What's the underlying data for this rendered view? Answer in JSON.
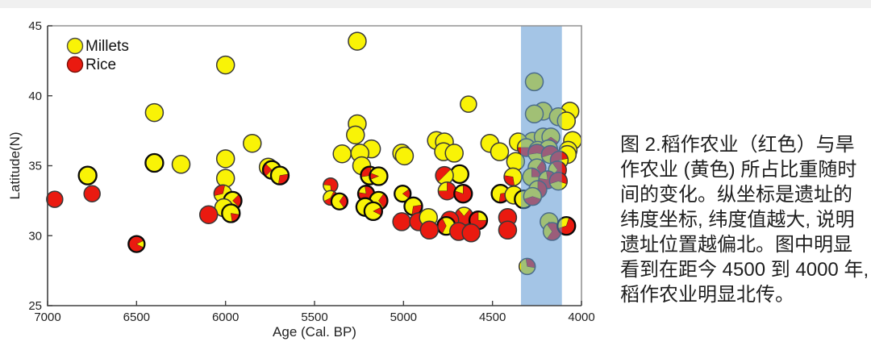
{
  "figure": {
    "caption_lines": [
      "图 2.稻作农业（红色）与旱",
      "作农业 (黄色) 所占比重随时",
      "间的变化。纵坐标是遗址的",
      "纬度坐标, 纬度值越大, 说明",
      "遗址位置越偏北。图中明显",
      "看到在距今 4500 到 4000 年,",
      "稻作农业明显北传。"
    ]
  },
  "chart_data": {
    "type": "scatter",
    "subtype": "pie-markers",
    "title": "",
    "xlabel": "Age (Cal. BP)",
    "ylabel": "Latitude(N)",
    "xlim": [
      7000,
      4000
    ],
    "ylim": [
      25,
      45
    ],
    "x_ticks": [
      7000,
      6500,
      6000,
      5500,
      5000,
      4500,
      4000
    ],
    "y_ticks": [
      25,
      30,
      35,
      40,
      45
    ],
    "x_axis_reversed": true,
    "grid": false,
    "legend": {
      "position": "top-left-inside",
      "items": [
        {
          "label": "Millets",
          "color": "#f9f306"
        },
        {
          "label": "Rice",
          "color": "#ea1a10"
        }
      ]
    },
    "highlight_band": {
      "x_from": 4340,
      "x_to": 4110,
      "color": "#5a96d2",
      "opacity": 0.55
    },
    "colors": {
      "millet": "#f9f306",
      "rice": "#ea1a10",
      "marker_edge": "#383838",
      "marker_edge_thick": "#0a0a0a",
      "axis_dark": "#404040",
      "axis_light": "#949494"
    },
    "points_columns": [
      "age_cal_bp",
      "latitude_n",
      "rice_fraction",
      "wedge_rotation_deg",
      "radius_px",
      "thick_edge"
    ],
    "points": [
      [
        5260,
        43.9,
        0,
        0,
        11,
        0
      ],
      [
        6000,
        42.2,
        0,
        0,
        11,
        0
      ],
      [
        4265,
        41.0,
        0,
        0,
        11,
        0
      ],
      [
        4635,
        39.4,
        0,
        0,
        10,
        0
      ],
      [
        4065,
        38.9,
        0,
        0,
        11,
        0
      ],
      [
        6400,
        38.8,
        0,
        0,
        11,
        0
      ],
      [
        4215,
        38.9,
        0,
        0,
        11,
        0
      ],
      [
        4265,
        38.7,
        0,
        0,
        11,
        0
      ],
      [
        4130,
        38.5,
        0,
        0,
        11,
        0
      ],
      [
        4085,
        38.2,
        0,
        0,
        11,
        0
      ],
      [
        5260,
        38.0,
        0,
        0,
        11,
        0
      ],
      [
        5270,
        37.2,
        0,
        0,
        11,
        0
      ],
      [
        5850,
        36.6,
        0,
        0,
        11,
        0
      ],
      [
        4815,
        36.8,
        0,
        0,
        11,
        0
      ],
      [
        4770,
        36.7,
        0,
        0,
        11,
        0
      ],
      [
        4050,
        36.8,
        0,
        0,
        11,
        0
      ],
      [
        4275,
        36.75,
        0.15,
        45,
        11,
        0
      ],
      [
        4215,
        37.05,
        0.25,
        45,
        11,
        0
      ],
      [
        4172,
        37.05,
        0.3,
        90,
        11,
        0
      ],
      [
        4515,
        36.6,
        0,
        0,
        11,
        0
      ],
      [
        4355,
        36.7,
        0,
        0,
        11,
        0
      ],
      [
        4310,
        36.3,
        0.5,
        90,
        11,
        0
      ],
      [
        4245,
        36.1,
        0.5,
        90,
        11,
        0
      ],
      [
        4185,
        36.2,
        0.4,
        90,
        11,
        0
      ],
      [
        5180,
        36.2,
        0,
        0,
        11,
        0
      ],
      [
        4460,
        36.0,
        0,
        0,
        11,
        0
      ],
      [
        4775,
        36.0,
        0,
        0,
        11,
        0
      ],
      [
        4715,
        35.9,
        0,
        0,
        11,
        0
      ],
      [
        4075,
        36.1,
        0,
        0,
        11,
        0
      ],
      [
        4080,
        35.8,
        0,
        0,
        11,
        0
      ],
      [
        5010,
        35.9,
        0,
        0,
        11,
        0
      ],
      [
        4995,
        35.7,
        0,
        0,
        11,
        0
      ],
      [
        5345,
        35.85,
        0,
        0,
        11,
        0
      ],
      [
        5245,
        35.9,
        0,
        0,
        11,
        0
      ],
      [
        6000,
        35.5,
        0,
        0,
        11,
        0
      ],
      [
        4250,
        35.9,
        0.55,
        270,
        11,
        0
      ],
      [
        4175,
        35.8,
        0.6,
        270,
        11,
        0
      ],
      [
        4125,
        35.4,
        0.55,
        250,
        11,
        0
      ],
      [
        4370,
        35.3,
        0,
        0,
        11,
        0
      ],
      [
        6400,
        35.2,
        0,
        0,
        11,
        1
      ],
      [
        6250,
        35.1,
        0,
        0,
        11,
        0
      ],
      [
        5760,
        34.9,
        0,
        0,
        11,
        0
      ],
      [
        4250,
        34.85,
        0.3,
        0,
        11,
        0
      ],
      [
        5740,
        34.7,
        0.25,
        180,
        11,
        1
      ],
      [
        4685,
        34.4,
        0,
        0,
        11,
        1
      ],
      [
        4135,
        34.7,
        0.7,
        0,
        11,
        0
      ],
      [
        6775,
        34.3,
        0,
        0,
        11,
        1
      ],
      [
        5695,
        34.3,
        0.3,
        45,
        11,
        1
      ],
      [
        5235,
        35.0,
        0,
        0,
        11,
        0
      ],
      [
        5190,
        34.3,
        0.3,
        225,
        11,
        1
      ],
      [
        5140,
        34.25,
        0.12,
        180,
        11,
        1
      ],
      [
        4770,
        34.3,
        0.5,
        225,
        11,
        0
      ],
      [
        4280,
        34.2,
        0.25,
        315,
        11,
        0
      ],
      [
        4385,
        34.2,
        0.3,
        135,
        11,
        0
      ],
      [
        4190,
        34.0,
        0.8,
        45,
        11,
        0
      ],
      [
        4130,
        33.9,
        0.6,
        270,
        11,
        0
      ],
      [
        6000,
        34.1,
        0,
        0,
        11,
        0
      ],
      [
        5410,
        33.6,
        0.72,
        315,
        9,
        0
      ],
      [
        4245,
        33.3,
        0.5,
        0,
        11,
        0
      ],
      [
        6015,
        33.0,
        0.32,
        225,
        11,
        0
      ],
      [
        6750,
        33.0,
        1,
        0,
        10,
        0
      ],
      [
        6960,
        32.6,
        1,
        0,
        10,
        0
      ],
      [
        5210,
        33.0,
        0.8,
        45,
        10,
        1
      ],
      [
        5005,
        33.0,
        0.2,
        0,
        10,
        1
      ],
      [
        4755,
        33.2,
        0.75,
        45,
        11,
        0
      ],
      [
        4665,
        33.0,
        0.8,
        55,
        11,
        1
      ],
      [
        4455,
        33.0,
        0.3,
        45,
        11,
        1
      ],
      [
        4380,
        32.9,
        0,
        0,
        11,
        0
      ],
      [
        4325,
        32.6,
        0.25,
        0,
        11,
        1
      ],
      [
        4275,
        32.8,
        0.4,
        90,
        11,
        0
      ],
      [
        5960,
        32.5,
        0.25,
        0,
        11,
        1
      ],
      [
        5410,
        32.7,
        0.6,
        45,
        9,
        0
      ],
      [
        5360,
        32.45,
        0.3,
        0,
        10,
        1
      ],
      [
        5140,
        32.5,
        0.3,
        0,
        11,
        1
      ],
      [
        6010,
        32.0,
        0,
        0,
        11,
        0
      ],
      [
        5970,
        31.6,
        0.2,
        45,
        11,
        1
      ],
      [
        5215,
        32.05,
        0.1,
        0,
        11,
        1
      ],
      [
        5170,
        31.75,
        0.15,
        0,
        11,
        1
      ],
      [
        4945,
        32.1,
        0.3,
        45,
        11,
        1
      ],
      [
        6095,
        31.5,
        1,
        0,
        11,
        0
      ],
      [
        4660,
        31.4,
        0.78,
        90,
        11,
        0
      ],
      [
        4580,
        31.1,
        0.75,
        135,
        11,
        1
      ],
      [
        5010,
        31.0,
        1,
        0,
        11,
        0
      ],
      [
        4915,
        31.0,
        1,
        0,
        11,
        0
      ],
      [
        4860,
        31.3,
        0,
        0,
        11,
        0
      ],
      [
        4740,
        31.1,
        1,
        0,
        11,
        0
      ],
      [
        4415,
        31.3,
        1,
        0,
        11,
        0
      ],
      [
        4182,
        31.0,
        0.12,
        90,
        11,
        0
      ],
      [
        4760,
        30.7,
        0.35,
        180,
        11,
        1
      ],
      [
        4855,
        30.4,
        1,
        0,
        11,
        0
      ],
      [
        4690,
        30.3,
        1,
        0,
        11,
        0
      ],
      [
        4620,
        30.2,
        1,
        0,
        11,
        0
      ],
      [
        4415,
        30.4,
        1,
        0,
        11,
        0
      ],
      [
        4165,
        30.3,
        0.7,
        0,
        11,
        0
      ],
      [
        4085,
        30.7,
        0.65,
        45,
        11,
        1
      ],
      [
        6500,
        29.4,
        0.85,
        180,
        10,
        1
      ],
      [
        4305,
        27.8,
        0.3,
        315,
        10,
        0
      ]
    ]
  }
}
